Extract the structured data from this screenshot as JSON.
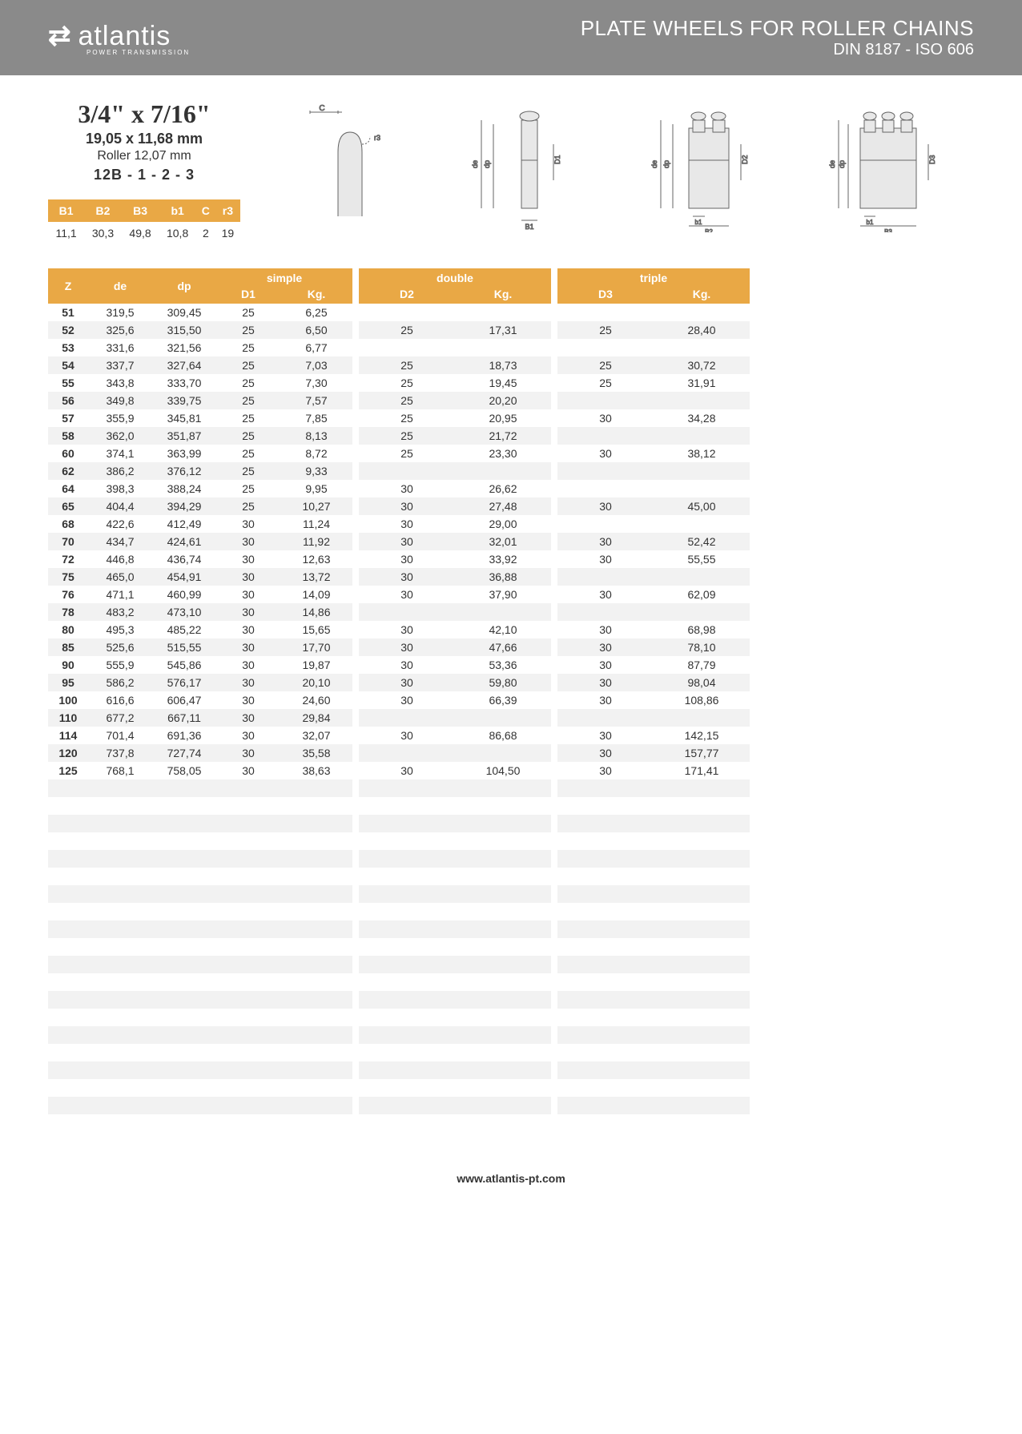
{
  "header": {
    "logo_text": "atlantis",
    "logo_sub": "POWER TRANSMISSION",
    "title": "PLATE WHEELS FOR ROLLER CHAINS",
    "subtitle": "DIN 8187 - ISO 606"
  },
  "spec": {
    "inch": "3/4\" x 7/16\"",
    "mm": "19,05 x 11,68 mm",
    "roller": "Roller 12,07 mm",
    "code": "12B - 1 - 2 - 3"
  },
  "dim_header": [
    "B1",
    "B2",
    "B3",
    "b1",
    "C",
    "r3"
  ],
  "dim_values": [
    "11,1",
    "30,3",
    "49,8",
    "10,8",
    "2",
    "19"
  ],
  "table": {
    "headers": {
      "z": "Z",
      "de": "de",
      "dp": "dp",
      "simple": "simple",
      "d1": "D1",
      "kg1": "Kg.",
      "double": "double",
      "d2": "D2",
      "kg2": "Kg.",
      "triple": "triple",
      "d3": "D3",
      "kg3": "Kg."
    },
    "rows": [
      {
        "z": "51",
        "de": "319,5",
        "dp": "309,45",
        "d1": "25",
        "kg1": "6,25",
        "d2": "",
        "kg2": "",
        "d3": "",
        "kg3": ""
      },
      {
        "z": "52",
        "de": "325,6",
        "dp": "315,50",
        "d1": "25",
        "kg1": "6,50",
        "d2": "25",
        "kg2": "17,31",
        "d3": "25",
        "kg3": "28,40"
      },
      {
        "z": "53",
        "de": "331,6",
        "dp": "321,56",
        "d1": "25",
        "kg1": "6,77",
        "d2": "",
        "kg2": "",
        "d3": "",
        "kg3": ""
      },
      {
        "z": "54",
        "de": "337,7",
        "dp": "327,64",
        "d1": "25",
        "kg1": "7,03",
        "d2": "25",
        "kg2": "18,73",
        "d3": "25",
        "kg3": "30,72"
      },
      {
        "z": "55",
        "de": "343,8",
        "dp": "333,70",
        "d1": "25",
        "kg1": "7,30",
        "d2": "25",
        "kg2": "19,45",
        "d3": "25",
        "kg3": "31,91"
      },
      {
        "z": "56",
        "de": "349,8",
        "dp": "339,75",
        "d1": "25",
        "kg1": "7,57",
        "d2": "25",
        "kg2": "20,20",
        "d3": "",
        "kg3": ""
      },
      {
        "z": "57",
        "de": "355,9",
        "dp": "345,81",
        "d1": "25",
        "kg1": "7,85",
        "d2": "25",
        "kg2": "20,95",
        "d3": "30",
        "kg3": "34,28"
      },
      {
        "z": "58",
        "de": "362,0",
        "dp": "351,87",
        "d1": "25",
        "kg1": "8,13",
        "d2": "25",
        "kg2": "21,72",
        "d3": "",
        "kg3": ""
      },
      {
        "z": "60",
        "de": "374,1",
        "dp": "363,99",
        "d1": "25",
        "kg1": "8,72",
        "d2": "25",
        "kg2": "23,30",
        "d3": "30",
        "kg3": "38,12"
      },
      {
        "z": "62",
        "de": "386,2",
        "dp": "376,12",
        "d1": "25",
        "kg1": "9,33",
        "d2": "",
        "kg2": "",
        "d3": "",
        "kg3": ""
      },
      {
        "z": "64",
        "de": "398,3",
        "dp": "388,24",
        "d1": "25",
        "kg1": "9,95",
        "d2": "30",
        "kg2": "26,62",
        "d3": "",
        "kg3": ""
      },
      {
        "z": "65",
        "de": "404,4",
        "dp": "394,29",
        "d1": "25",
        "kg1": "10,27",
        "d2": "30",
        "kg2": "27,48",
        "d3": "30",
        "kg3": "45,00"
      },
      {
        "z": "68",
        "de": "422,6",
        "dp": "412,49",
        "d1": "30",
        "kg1": "11,24",
        "d2": "30",
        "kg2": "29,00",
        "d3": "",
        "kg3": ""
      },
      {
        "z": "70",
        "de": "434,7",
        "dp": "424,61",
        "d1": "30",
        "kg1": "11,92",
        "d2": "30",
        "kg2": "32,01",
        "d3": "30",
        "kg3": "52,42"
      },
      {
        "z": "72",
        "de": "446,8",
        "dp": "436,74",
        "d1": "30",
        "kg1": "12,63",
        "d2": "30",
        "kg2": "33,92",
        "d3": "30",
        "kg3": "55,55"
      },
      {
        "z": "75",
        "de": "465,0",
        "dp": "454,91",
        "d1": "30",
        "kg1": "13,72",
        "d2": "30",
        "kg2": "36,88",
        "d3": "",
        "kg3": ""
      },
      {
        "z": "76",
        "de": "471,1",
        "dp": "460,99",
        "d1": "30",
        "kg1": "14,09",
        "d2": "30",
        "kg2": "37,90",
        "d3": "30",
        "kg3": "62,09"
      },
      {
        "z": "78",
        "de": "483,2",
        "dp": "473,10",
        "d1": "30",
        "kg1": "14,86",
        "d2": "",
        "kg2": "",
        "d3": "",
        "kg3": ""
      },
      {
        "z": "80",
        "de": "495,3",
        "dp": "485,22",
        "d1": "30",
        "kg1": "15,65",
        "d2": "30",
        "kg2": "42,10",
        "d3": "30",
        "kg3": "68,98"
      },
      {
        "z": "85",
        "de": "525,6",
        "dp": "515,55",
        "d1": "30",
        "kg1": "17,70",
        "d2": "30",
        "kg2": "47,66",
        "d3": "30",
        "kg3": "78,10"
      },
      {
        "z": "90",
        "de": "555,9",
        "dp": "545,86",
        "d1": "30",
        "kg1": "19,87",
        "d2": "30",
        "kg2": "53,36",
        "d3": "30",
        "kg3": "87,79"
      },
      {
        "z": "95",
        "de": "586,2",
        "dp": "576,17",
        "d1": "30",
        "kg1": "20,10",
        "d2": "30",
        "kg2": "59,80",
        "d3": "30",
        "kg3": "98,04"
      },
      {
        "z": "100",
        "de": "616,6",
        "dp": "606,47",
        "d1": "30",
        "kg1": "24,60",
        "d2": "30",
        "kg2": "66,39",
        "d3": "30",
        "kg3": "108,86"
      },
      {
        "z": "110",
        "de": "677,2",
        "dp": "667,11",
        "d1": "30",
        "kg1": "29,84",
        "d2": "",
        "kg2": "",
        "d3": "",
        "kg3": ""
      },
      {
        "z": "114",
        "de": "701,4",
        "dp": "691,36",
        "d1": "30",
        "kg1": "32,07",
        "d2": "30",
        "kg2": "86,68",
        "d3": "30",
        "kg3": "142,15"
      },
      {
        "z": "120",
        "de": "737,8",
        "dp": "727,74",
        "d1": "30",
        "kg1": "35,58",
        "d2": "",
        "kg2": "",
        "d3": "30",
        "kg3": "157,77"
      },
      {
        "z": "125",
        "de": "768,1",
        "dp": "758,05",
        "d1": "30",
        "kg1": "38,63",
        "d2": "30",
        "kg2": "104,50",
        "d3": "30",
        "kg3": "171,41"
      }
    ],
    "blank_rows": 20
  },
  "footer": "www.atlantis-pt.com",
  "colors": {
    "header_bg": "#8a8a8a",
    "accent": "#e9a845",
    "row_alt": "#f2f2f2"
  }
}
